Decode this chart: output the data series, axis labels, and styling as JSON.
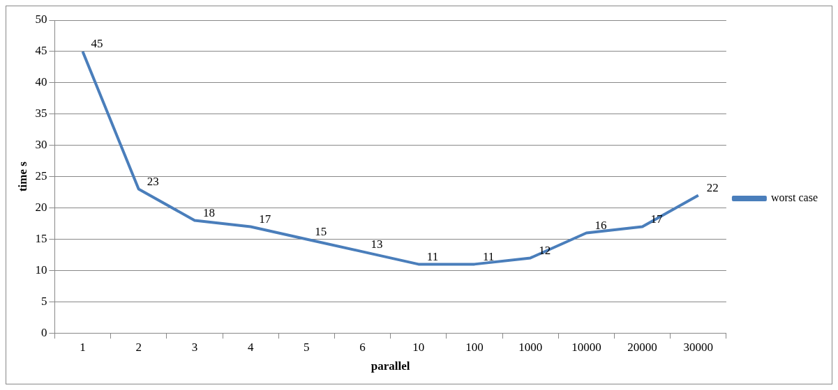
{
  "chart_data": {
    "type": "line",
    "xlabel": "parallel",
    "ylabel": "time s",
    "categories": [
      "1",
      "2",
      "3",
      "4",
      "5",
      "6",
      "10",
      "100",
      "1000",
      "10000",
      "20000",
      "30000"
    ],
    "series": [
      {
        "name": "worst case",
        "color": "#4a7ebb",
        "values": [
          45,
          23,
          18,
          17,
          15,
          13,
          11,
          11,
          12,
          16,
          17,
          22
        ]
      }
    ],
    "ylim": [
      0,
      50
    ],
    "yticks": [
      0,
      5,
      10,
      15,
      20,
      25,
      30,
      35,
      40,
      45,
      50
    ],
    "grid": "y",
    "legend": "right",
    "data_labels": true,
    "marker": "none",
    "line_style": "solid"
  }
}
